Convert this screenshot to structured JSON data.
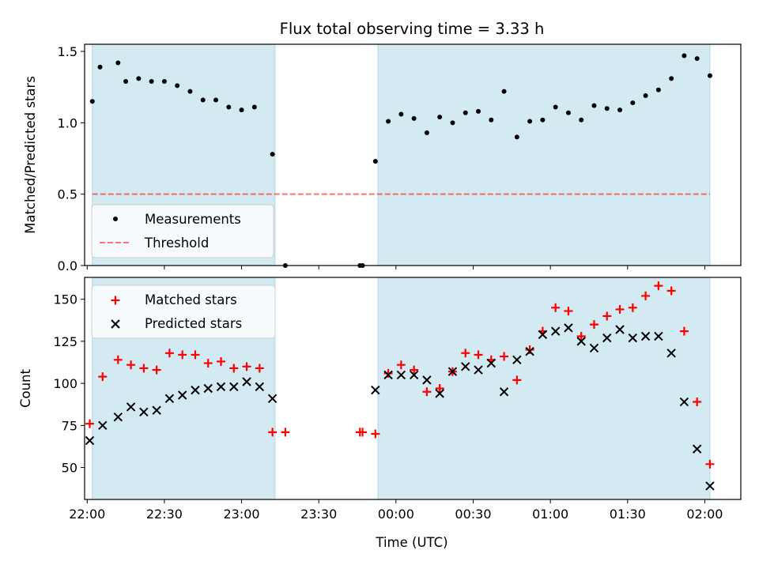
{
  "figure": {
    "title": "Flux total observing time = 3.33 h",
    "xlabel": "Time (UTC)"
  },
  "colors": {
    "band": "#add8e6",
    "threshold": "#ff0000",
    "measurement": "#000000",
    "matched": "#ff0000",
    "predicted": "#000000"
  },
  "chart_data": [
    {
      "type": "scatter",
      "panel": "top",
      "ylabel": "Matched/Predicted stars",
      "xlim": [
        "21:59",
        "02:14"
      ],
      "ylim": [
        0,
        1.55
      ],
      "x_ticks": [
        "22:00",
        "22:30",
        "23:00",
        "23:30",
        "00:00",
        "00:30",
        "01:00",
        "01:30",
        "02:00"
      ],
      "y_ticks": [
        "0.0",
        "0.5",
        "1.0",
        "1.5"
      ],
      "shaded_intervals": [
        [
          "22:02",
          "23:13"
        ],
        [
          "23:53",
          "02:02"
        ]
      ],
      "legend": {
        "position": "lower left",
        "entries": [
          "Measurements",
          "Threshold"
        ]
      },
      "threshold": {
        "name": "Threshold",
        "y": 0.5,
        "x_range": [
          "22:02",
          "02:02"
        ],
        "style": "dashed"
      },
      "series": [
        {
          "name": "Measurements",
          "marker": "dot",
          "points": [
            [
              "22:02",
              1.15
            ],
            [
              "22:05",
              1.39
            ],
            [
              "22:12",
              1.42
            ],
            [
              "22:15",
              1.29
            ],
            [
              "22:20",
              1.31
            ],
            [
              "22:25",
              1.29
            ],
            [
              "22:30",
              1.29
            ],
            [
              "22:35",
              1.26
            ],
            [
              "22:40",
              1.22
            ],
            [
              "22:45",
              1.16
            ],
            [
              "22:50",
              1.16
            ],
            [
              "22:55",
              1.11
            ],
            [
              "23:00",
              1.09
            ],
            [
              "23:05",
              1.11
            ],
            [
              "23:12",
              0.78
            ],
            [
              "23:17",
              0.0
            ],
            [
              "23:46",
              0.0
            ],
            [
              "23:47",
              0.0
            ],
            [
              "23:52",
              0.73
            ],
            [
              "23:57",
              1.01
            ],
            [
              "00:02",
              1.06
            ],
            [
              "00:07",
              1.03
            ],
            [
              "00:12",
              0.93
            ],
            [
              "00:17",
              1.04
            ],
            [
              "00:22",
              1.0
            ],
            [
              "00:27",
              1.07
            ],
            [
              "00:32",
              1.08
            ],
            [
              "00:37",
              1.02
            ],
            [
              "00:42",
              1.22
            ],
            [
              "00:47",
              0.9
            ],
            [
              "00:52",
              1.01
            ],
            [
              "00:57",
              1.02
            ],
            [
              "01:02",
              1.11
            ],
            [
              "01:07",
              1.07
            ],
            [
              "01:12",
              1.02
            ],
            [
              "01:17",
              1.12
            ],
            [
              "01:22",
              1.1
            ],
            [
              "01:27",
              1.09
            ],
            [
              "01:32",
              1.14
            ],
            [
              "01:37",
              1.19
            ],
            [
              "01:42",
              1.23
            ],
            [
              "01:47",
              1.31
            ],
            [
              "01:52",
              1.47
            ],
            [
              "01:57",
              1.45
            ],
            [
              "02:02",
              1.33
            ]
          ]
        }
      ]
    },
    {
      "type": "scatter",
      "panel": "bottom",
      "ylabel": "Count",
      "xlim": [
        "21:59",
        "02:14"
      ],
      "ylim": [
        31,
        163
      ],
      "x_ticks": [
        "22:00",
        "22:30",
        "23:00",
        "23:30",
        "00:00",
        "00:30",
        "01:00",
        "01:30",
        "02:00"
      ],
      "y_ticks": [
        "50",
        "75",
        "100",
        "125",
        "150"
      ],
      "shaded_intervals": [
        [
          "22:02",
          "23:13"
        ],
        [
          "23:53",
          "02:02"
        ]
      ],
      "legend": {
        "position": "upper left",
        "entries": [
          "Matched stars",
          "Predicted stars"
        ]
      },
      "series": [
        {
          "name": "Matched stars",
          "marker": "plus",
          "points": [
            [
              "22:01",
              76
            ],
            [
              "22:06",
              104
            ],
            [
              "22:12",
              114
            ],
            [
              "22:17",
              111
            ],
            [
              "22:22",
              109
            ],
            [
              "22:27",
              108
            ],
            [
              "22:32",
              118
            ],
            [
              "22:37",
              117
            ],
            [
              "22:42",
              117
            ],
            [
              "22:47",
              112
            ],
            [
              "22:52",
              113
            ],
            [
              "22:57",
              109
            ],
            [
              "23:02",
              110
            ],
            [
              "23:07",
              109
            ],
            [
              "23:12",
              71
            ],
            [
              "23:17",
              71
            ],
            [
              "23:46",
              71
            ],
            [
              "23:47",
              71
            ],
            [
              "23:52",
              70
            ],
            [
              "23:57",
              106
            ],
            [
              "00:02",
              111
            ],
            [
              "00:07",
              108
            ],
            [
              "00:12",
              95
            ],
            [
              "00:17",
              97
            ],
            [
              "00:22",
              107
            ],
            [
              "00:27",
              118
            ],
            [
              "00:32",
              117
            ],
            [
              "00:37",
              114
            ],
            [
              "00:42",
              116
            ],
            [
              "00:47",
              102
            ],
            [
              "00:52",
              120
            ],
            [
              "00:57",
              131
            ],
            [
              "01:02",
              145
            ],
            [
              "01:07",
              143
            ],
            [
              "01:12",
              128
            ],
            [
              "01:17",
              135
            ],
            [
              "01:22",
              140
            ],
            [
              "01:27",
              144
            ],
            [
              "01:32",
              145
            ],
            [
              "01:37",
              152
            ],
            [
              "01:42",
              158
            ],
            [
              "01:47",
              155
            ],
            [
              "01:52",
              131
            ],
            [
              "01:57",
              89
            ],
            [
              "02:02",
              52
            ]
          ]
        },
        {
          "name": "Predicted stars",
          "marker": "x",
          "points": [
            [
              "22:01",
              66
            ],
            [
              "22:06",
              75
            ],
            [
              "22:12",
              80
            ],
            [
              "22:17",
              86
            ],
            [
              "22:22",
              83
            ],
            [
              "22:27",
              84
            ],
            [
              "22:32",
              91
            ],
            [
              "22:37",
              93
            ],
            [
              "22:42",
              96
            ],
            [
              "22:47",
              97
            ],
            [
              "22:52",
              98
            ],
            [
              "22:57",
              98
            ],
            [
              "23:02",
              101
            ],
            [
              "23:07",
              98
            ],
            [
              "23:12",
              91
            ],
            [
              "23:52",
              96
            ],
            [
              "23:57",
              105
            ],
            [
              "00:02",
              105
            ],
            [
              "00:07",
              105
            ],
            [
              "00:12",
              102
            ],
            [
              "00:17",
              94
            ],
            [
              "00:22",
              107
            ],
            [
              "00:27",
              110
            ],
            [
              "00:32",
              108
            ],
            [
              "00:37",
              112
            ],
            [
              "00:42",
              95
            ],
            [
              "00:47",
              114
            ],
            [
              "00:52",
              119
            ],
            [
              "00:57",
              129
            ],
            [
              "01:02",
              131
            ],
            [
              "01:07",
              133
            ],
            [
              "01:12",
              125
            ],
            [
              "01:17",
              121
            ],
            [
              "01:22",
              127
            ],
            [
              "01:27",
              132
            ],
            [
              "01:32",
              127
            ],
            [
              "01:37",
              128
            ],
            [
              "01:42",
              128
            ],
            [
              "01:47",
              118
            ],
            [
              "01:52",
              89
            ],
            [
              "01:57",
              61
            ],
            [
              "02:02",
              39
            ]
          ]
        }
      ]
    }
  ]
}
